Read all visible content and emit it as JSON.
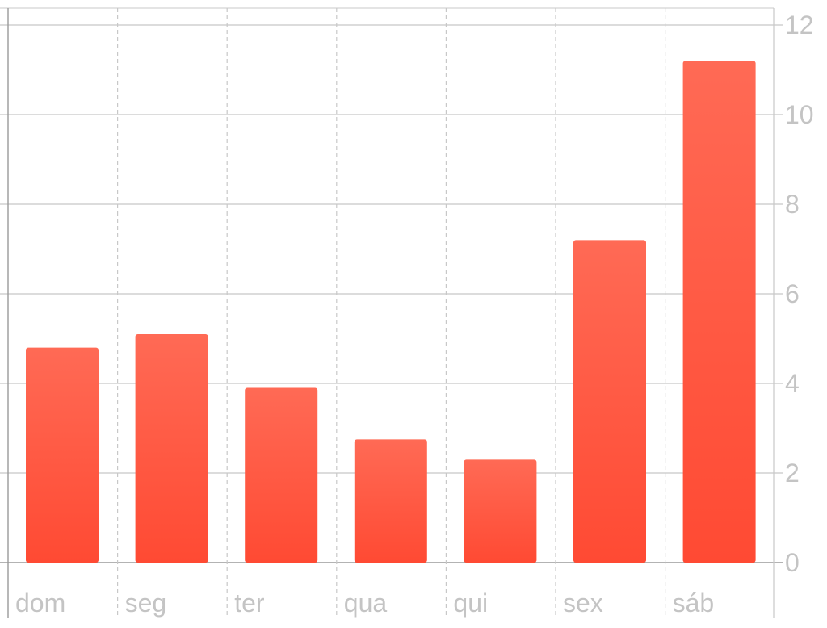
{
  "chart_data": {
    "type": "bar",
    "categories": [
      "dom",
      "seg",
      "ter",
      "qua",
      "qui",
      "sex",
      "sáb"
    ],
    "values": [
      4.8,
      5.1,
      3.9,
      2.75,
      2.3,
      7.2,
      11.2
    ],
    "ylim": [
      0,
      12
    ],
    "y_ticks": [
      "0",
      "2",
      "4",
      "6",
      "8",
      "10",
      "12"
    ],
    "y_axis_side": "right",
    "grid": true,
    "legend": "none"
  },
  "colors": {
    "bar_top": "#ff6a55",
    "bar_bottom": "#ff4a33",
    "grid": "#c8c8c8",
    "axis": "#9a9a9a",
    "label": "#c4c4c4"
  }
}
